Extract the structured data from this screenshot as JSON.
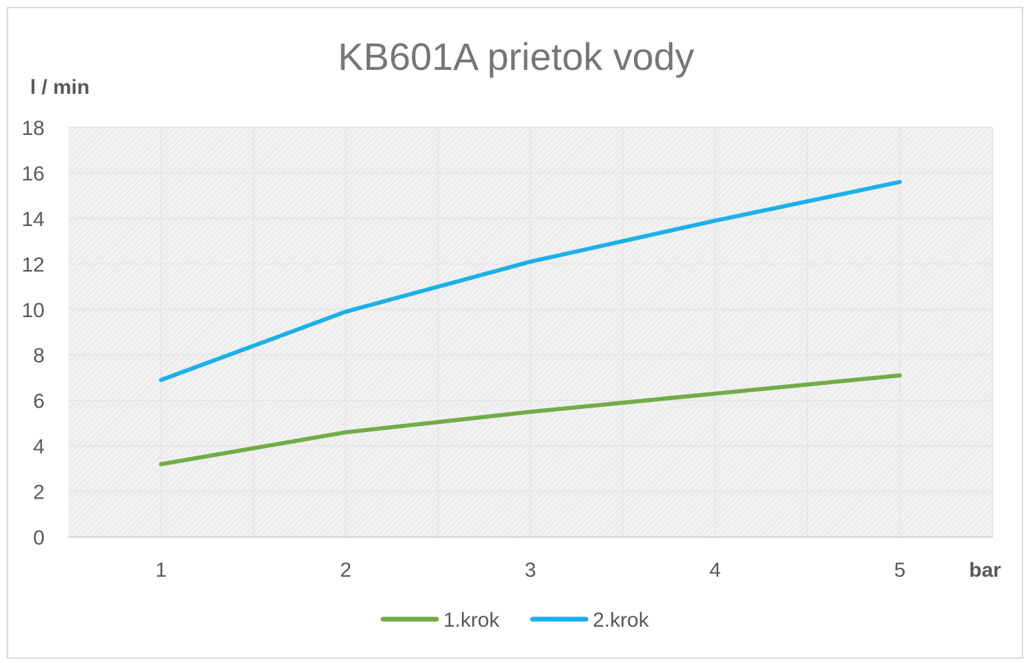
{
  "chart_data": {
    "type": "line",
    "title": "KB601A prietok vody",
    "xlabel": "bar",
    "ylabel": "l / min",
    "categories": [
      "1",
      "2",
      "3",
      "4",
      "5"
    ],
    "ylim": [
      0,
      18
    ],
    "yticks": [
      "0",
      "2",
      "4",
      "6",
      "8",
      "10",
      "12",
      "14",
      "16",
      "18"
    ],
    "grid": true,
    "legend_position": "bottom",
    "series": [
      {
        "name": "1.krok",
        "color": "#70ad47",
        "values": [
          3.2,
          4.6,
          5.5,
          6.3,
          7.1
        ]
      },
      {
        "name": "2.krok",
        "color": "#1cb0e8",
        "values": [
          6.9,
          9.9,
          12.1,
          13.9,
          15.6
        ]
      }
    ]
  }
}
